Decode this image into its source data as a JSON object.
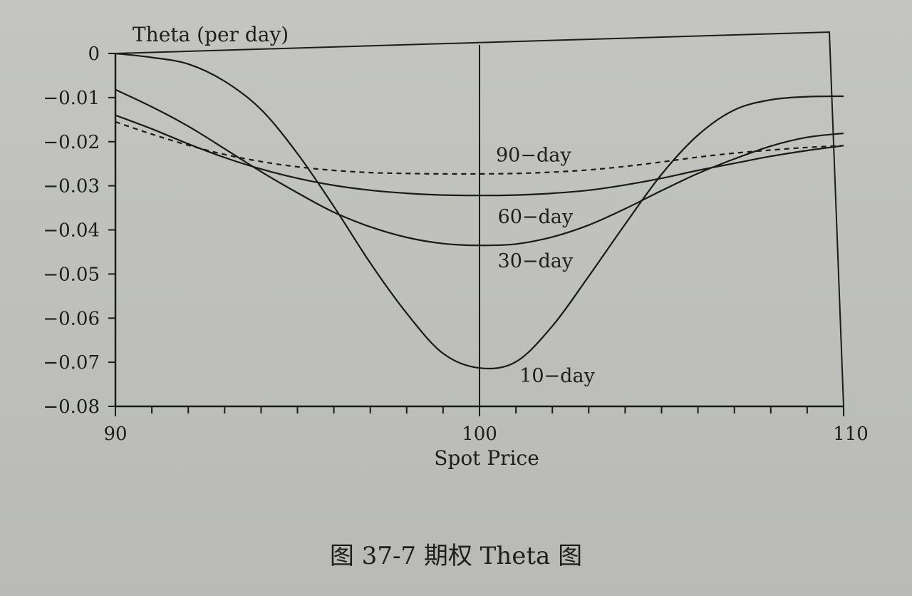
{
  "caption": "图 37-7   期权 Theta 图",
  "chart_data": {
    "type": "line",
    "ylabel": "Theta (per day)",
    "xlabel": "Spot Price",
    "xlim": [
      90,
      110
    ],
    "ylim": [
      -0.08,
      0
    ],
    "x_ticks": [
      90,
      100,
      110
    ],
    "x_tick_labels": [
      "90",
      "100",
      "110"
    ],
    "y_ticks": [
      0,
      -0.01,
      -0.02,
      -0.03,
      -0.04,
      -0.05,
      -0.06,
      -0.07,
      -0.08
    ],
    "y_tick_labels": [
      "0",
      "−0.01",
      "−0.02",
      "−0.03",
      "−0.04",
      "−0.05",
      "−0.06",
      "−0.07",
      "−0.08"
    ],
    "grid": false,
    "vertical_reference_x": 100,
    "x": [
      90,
      91,
      92,
      93,
      94,
      95,
      96,
      97,
      98,
      99,
      100,
      101,
      102,
      103,
      104,
      105,
      106,
      107,
      108,
      109,
      110
    ],
    "series": [
      {
        "name": "10-day",
        "style": "solid",
        "values": [
          0.0,
          -0.0009,
          -0.0024,
          -0.0063,
          -0.0127,
          -0.0227,
          -0.0347,
          -0.0475,
          -0.0589,
          -0.068,
          -0.0713,
          -0.0699,
          -0.0618,
          -0.0505,
          -0.0387,
          -0.0274,
          -0.0185,
          -0.0128,
          -0.0105,
          -0.0098,
          -0.0097
        ],
        "label_x": 101.1,
        "label_y": -0.0745
      },
      {
        "name": "30-day",
        "style": "solid",
        "values": [
          -0.0082,
          -0.0121,
          -0.0165,
          -0.0216,
          -0.0268,
          -0.0316,
          -0.036,
          -0.0393,
          -0.0417,
          -0.0431,
          -0.0435,
          -0.0432,
          -0.0416,
          -0.0389,
          -0.0352,
          -0.0311,
          -0.0272,
          -0.0239,
          -0.021,
          -0.019,
          -0.0181
        ],
        "label_x": 100.5,
        "label_y": -0.0485
      },
      {
        "name": "60-day",
        "style": "solid",
        "values": [
          -0.014,
          -0.0171,
          -0.0205,
          -0.0236,
          -0.0262,
          -0.0283,
          -0.0299,
          -0.031,
          -0.0317,
          -0.0321,
          -0.0322,
          -0.0321,
          -0.0317,
          -0.031,
          -0.0298,
          -0.0283,
          -0.0265,
          -0.0249,
          -0.0233,
          -0.022,
          -0.0209
        ],
        "label_x": 100.5,
        "label_y": -0.0385
      },
      {
        "name": "90-day",
        "style": "dashed",
        "values": [
          -0.0155,
          -0.0183,
          -0.0208,
          -0.0229,
          -0.0245,
          -0.0257,
          -0.0265,
          -0.027,
          -0.0272,
          -0.0273,
          -0.0273,
          -0.0272,
          -0.0269,
          -0.0264,
          -0.0256,
          -0.0246,
          -0.0235,
          -0.0226,
          -0.0219,
          -0.0213,
          -0.0209
        ],
        "label_x": 100.45,
        "label_y": -0.0245
      }
    ]
  }
}
